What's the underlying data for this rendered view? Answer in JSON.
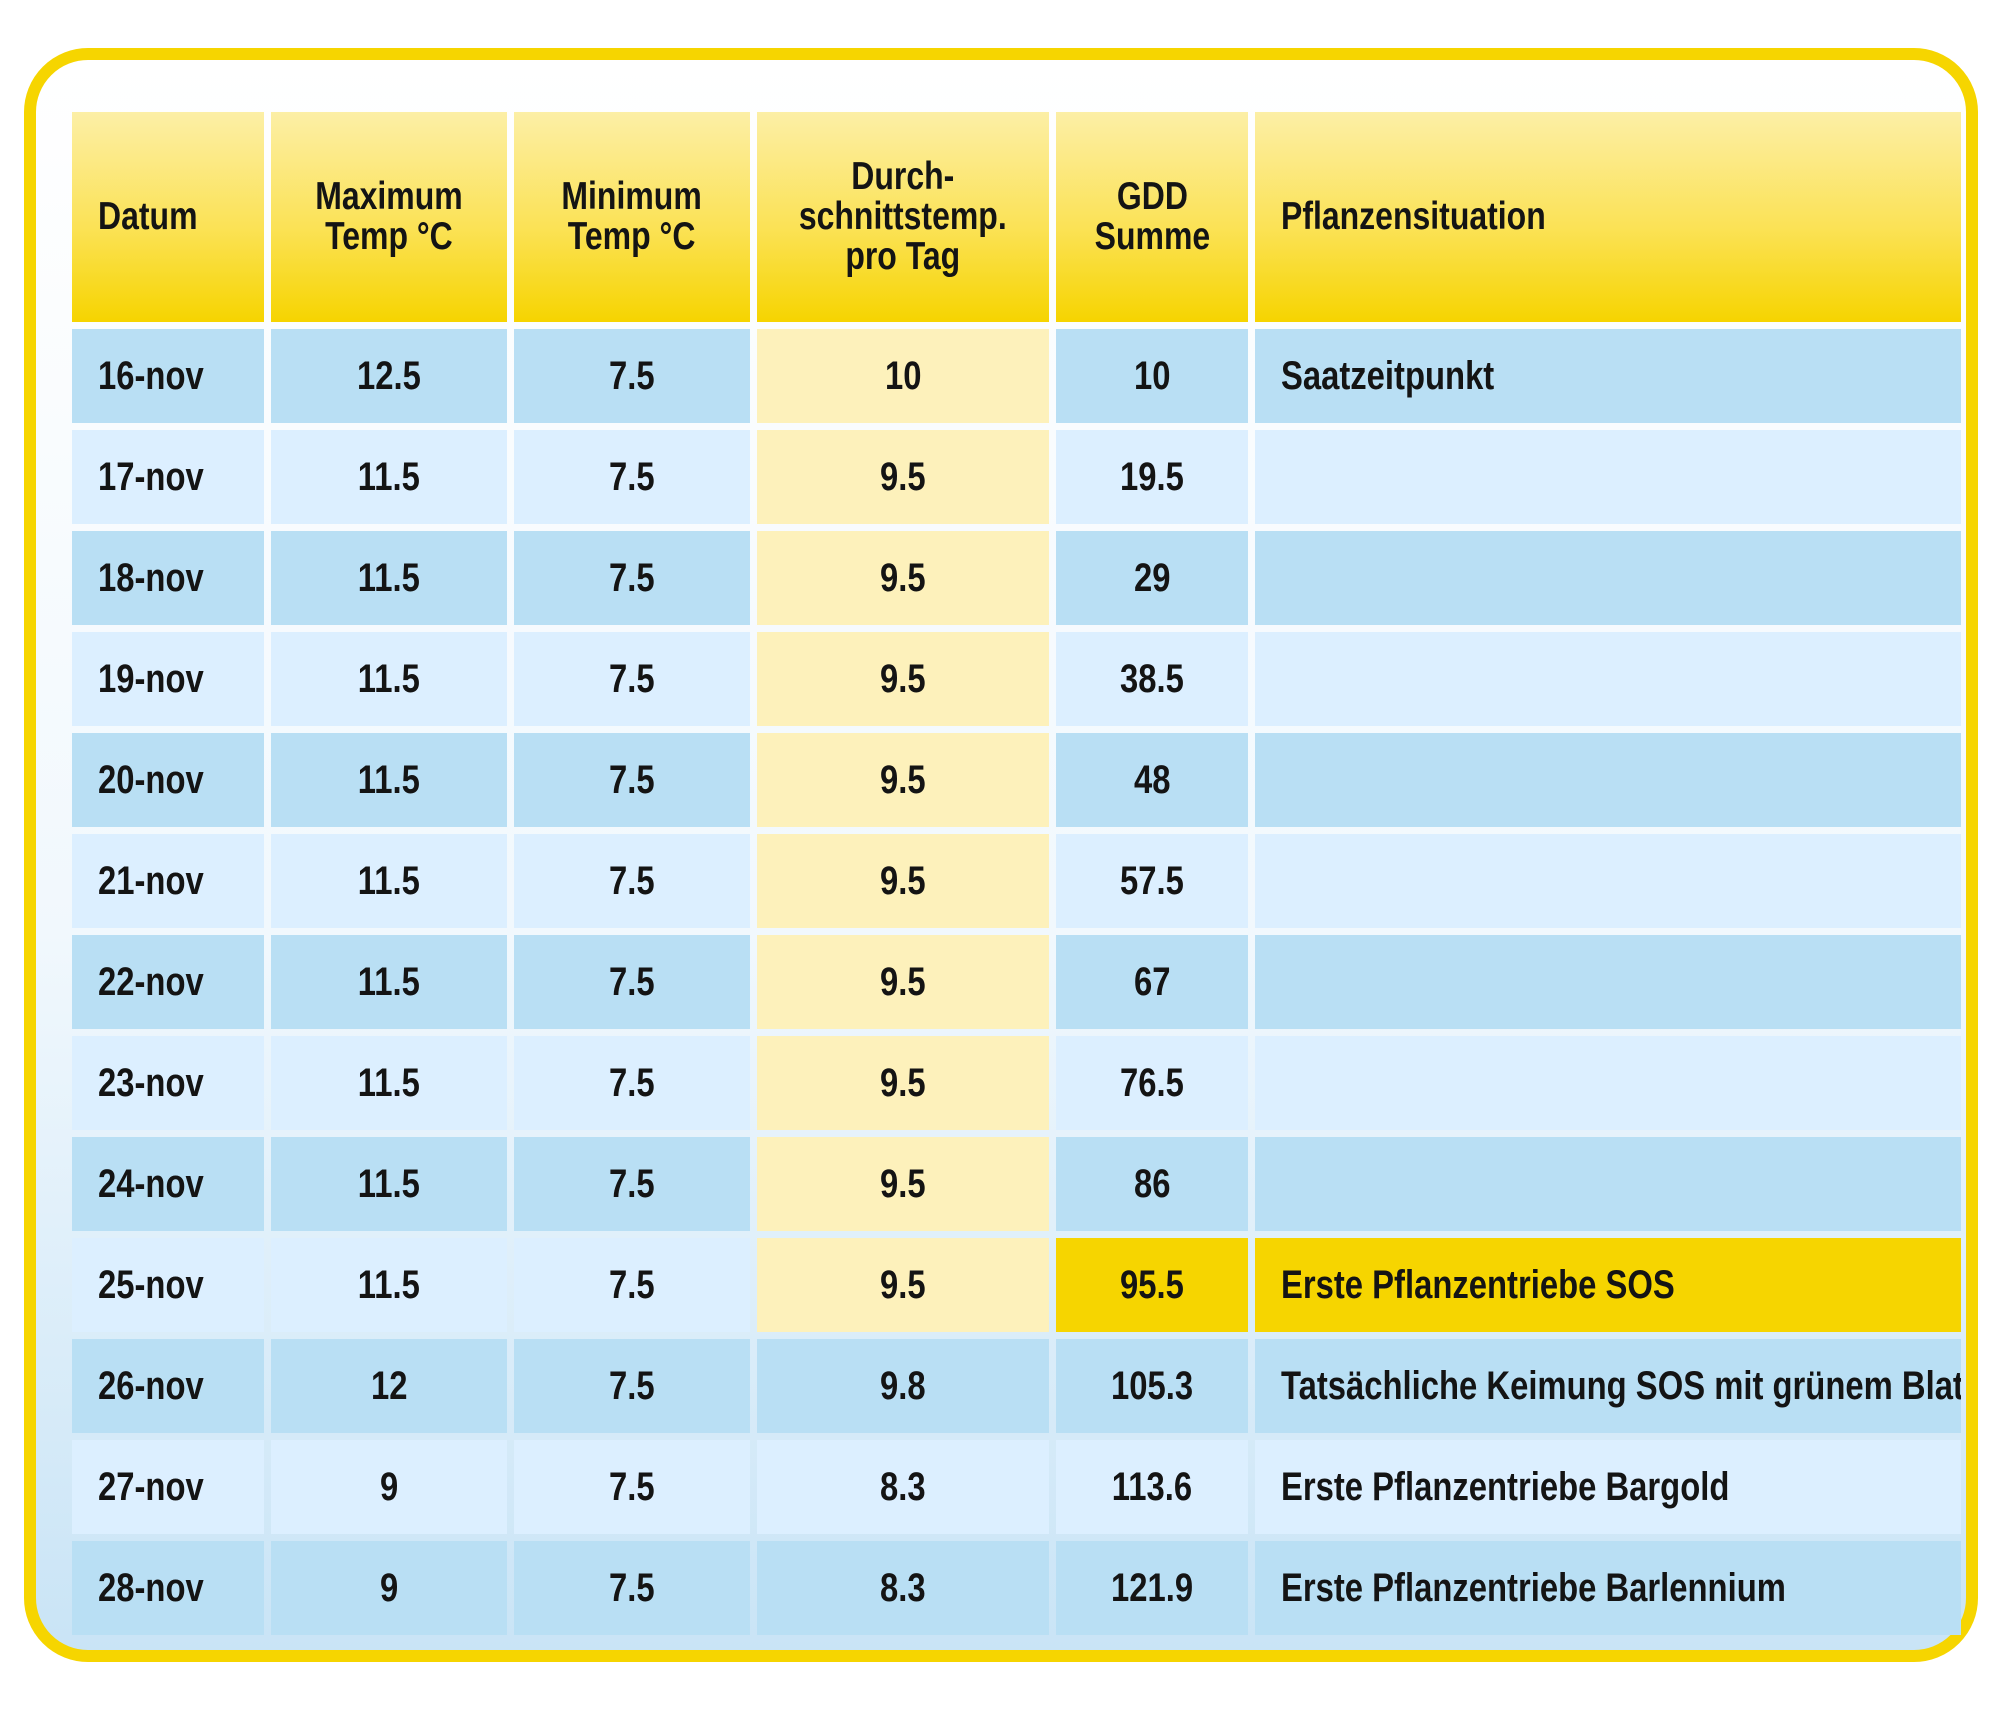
{
  "colors": {
    "border": "#f6d500",
    "header": "#f6d500",
    "row_dark": "#b9dff4",
    "row_light": "#dcefff",
    "avg_column": "#fdf1bb",
    "highlight": "#f6d500"
  },
  "chart_data": {
    "type": "table",
    "columns": [
      "Datum",
      "Maximum\nTemp °C",
      "Minimum\nTemp °C",
      "Durch-\nschnittstemp.\npro Tag",
      "GDD\nSumme",
      "Pflanzensituation"
    ],
    "rows": [
      [
        "16-nov",
        "12.5",
        "7.5",
        "10",
        "10",
        "Saatzeitpunkt"
      ],
      [
        "17-nov",
        "11.5",
        "7.5",
        "9.5",
        "19.5",
        ""
      ],
      [
        "18-nov",
        "11.5",
        "7.5",
        "9.5",
        "29",
        ""
      ],
      [
        "19-nov",
        "11.5",
        "7.5",
        "9.5",
        "38.5",
        ""
      ],
      [
        "20-nov",
        "11.5",
        "7.5",
        "9.5",
        "48",
        ""
      ],
      [
        "21-nov",
        "11.5",
        "7.5",
        "9.5",
        "57.5",
        ""
      ],
      [
        "22-nov",
        "11.5",
        "7.5",
        "9.5",
        "67",
        ""
      ],
      [
        "23-nov",
        "11.5",
        "7.5",
        "9.5",
        "76.5",
        ""
      ],
      [
        "24-nov",
        "11.5",
        "7.5",
        "9.5",
        "86",
        ""
      ],
      [
        "25-nov",
        "11.5",
        "7.5",
        "9.5",
        "95.5",
        "Erste Pflanzentriebe SOS"
      ],
      [
        "26-nov",
        "12",
        "7.5",
        "9.8",
        "105.3",
        "Tatsächliche Keimung SOS mit grünem Blatt"
      ],
      [
        "27-nov",
        "9",
        "7.5",
        "8.3",
        "113.6",
        "Erste Pflanzentriebe Bargold"
      ],
      [
        "28-nov",
        "9",
        "7.5",
        "8.3",
        "121.9",
        "Erste Pflanzentriebe Barlennium"
      ]
    ],
    "highlighted_row": 9,
    "highlighted_columns": [
      4,
      5
    ]
  }
}
